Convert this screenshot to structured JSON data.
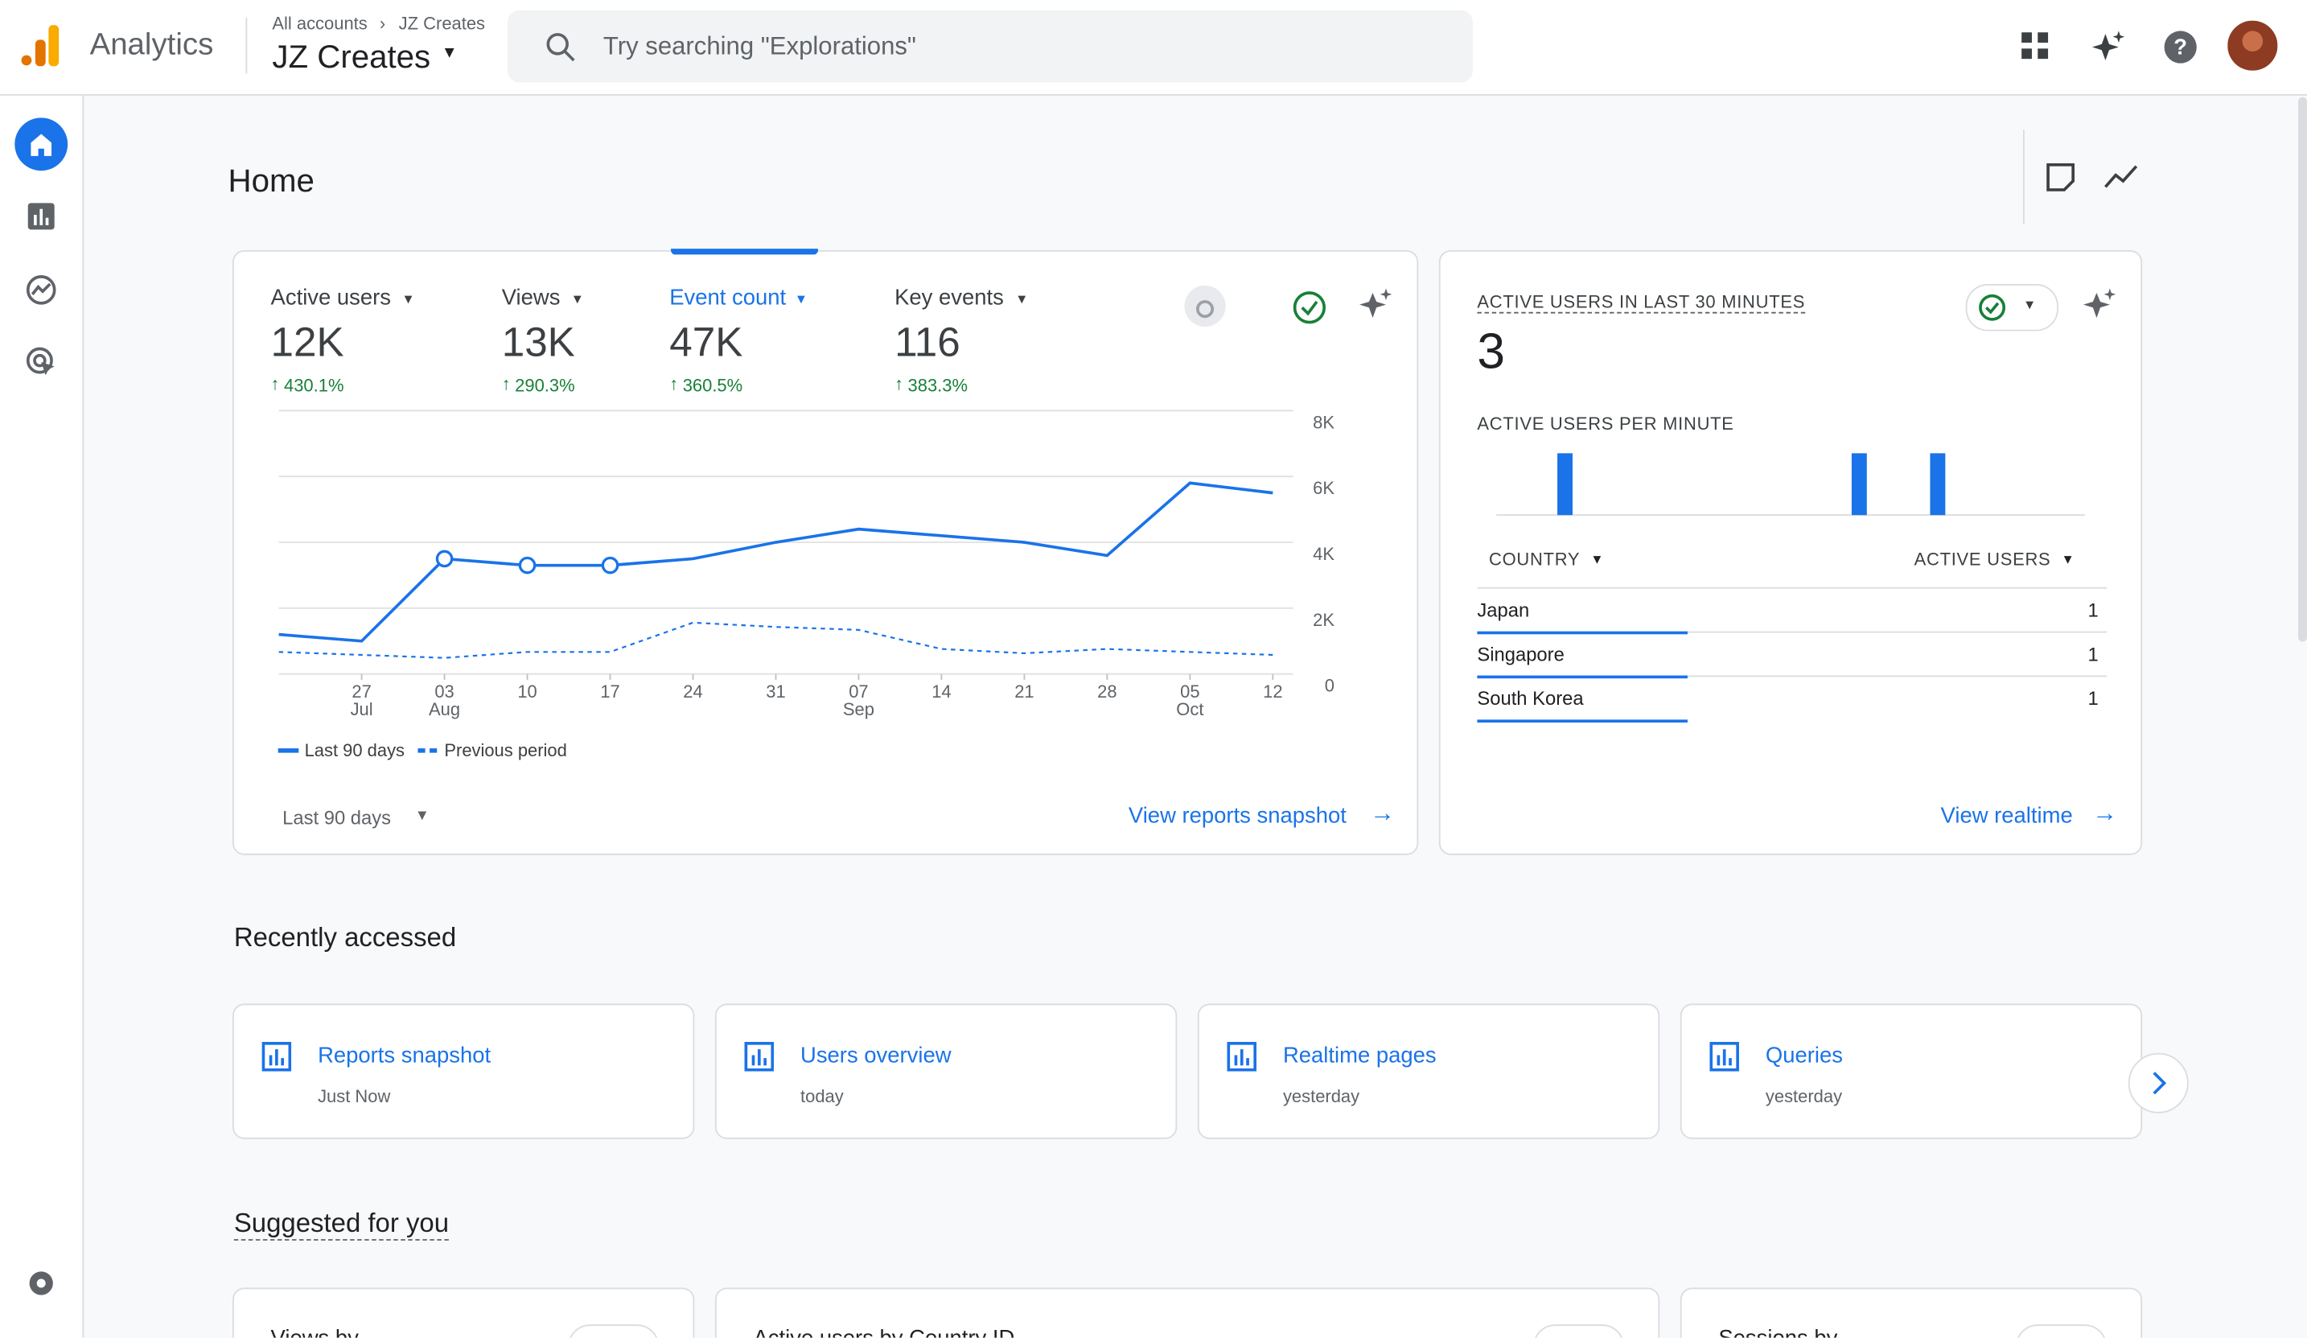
{
  "header": {
    "product": "Analytics",
    "breadcrumb": [
      "All accounts",
      "JZ Creates"
    ],
    "property": "JZ Creates",
    "search_placeholder": "Try searching \"Explorations\""
  },
  "page_title": "Home",
  "overview": {
    "metrics": [
      {
        "name": "Active users",
        "value": "12K",
        "change": "430.1%"
      },
      {
        "name": "Views",
        "value": "13K",
        "change": "290.3%"
      },
      {
        "name": "Event count",
        "value": "47K",
        "change": "360.5%"
      },
      {
        "name": "Key events",
        "value": "116",
        "change": "383.3%"
      }
    ],
    "chart": {
      "type": "line",
      "categories": [
        null,
        "27",
        "03",
        "10",
        "17",
        "24",
        "31",
        "07",
        "14",
        "21",
        "28",
        "05",
        "12"
      ],
      "months": [
        null,
        "Jul",
        "Aug",
        null,
        null,
        null,
        null,
        "Sep",
        null,
        null,
        null,
        "Oct",
        null
      ],
      "ylim": [
        0,
        8000
      ],
      "yticks": [
        0,
        {
          "value": 2000,
          "label": "2K"
        },
        {
          "value": 4000,
          "label": "4K"
        },
        {
          "value": 6000,
          "label": "6K"
        },
        {
          "value": 8000,
          "label": "8K"
        }
      ],
      "grid": true,
      "series": [
        {
          "name": "Last 90 days",
          "color": "#1a73e8",
          "values": [
            1200,
            1000,
            3500,
            3300,
            3300,
            3500,
            4000,
            4400,
            4200,
            4000,
            3600,
            5800,
            5500
          ]
        },
        {
          "name": "Previous period",
          "color": "#1a73e8",
          "dashed": true,
          "values": [
            670,
            580,
            490,
            670,
            670,
            1560,
            1430,
            1340,
            760,
            630,
            760,
            670,
            580
          ]
        }
      ]
    },
    "date_range": "Last 90 days",
    "link": "View reports snapshot"
  },
  "realtime": {
    "title": "ACTIVE USERS IN LAST 30 MINUTES",
    "value": "3",
    "subtitle": "ACTIVE USERS PER MINUTE",
    "per_minute": {
      "type": "bar",
      "color": "#1a73e8",
      "values": [
        0,
        0,
        0,
        1,
        0,
        0,
        0,
        0,
        0,
        0,
        0,
        0,
        0,
        0,
        0,
        0,
        0,
        0,
        1,
        0,
        0,
        0,
        1,
        0,
        0,
        0,
        0,
        0,
        0,
        0
      ]
    },
    "table": {
      "headers": [
        "COUNTRY",
        "ACTIVE USERS"
      ],
      "rows": [
        [
          "Japan",
          1
        ],
        [
          "Singapore",
          1
        ],
        [
          "South Korea",
          1
        ]
      ]
    },
    "link": "View realtime"
  },
  "recent": {
    "title": "Recently accessed",
    "items": [
      {
        "name": "Reports snapshot",
        "time": "Just Now"
      },
      {
        "name": "Users overview",
        "time": "today"
      },
      {
        "name": "Realtime pages",
        "time": "yesterday"
      },
      {
        "name": "Queries",
        "time": "yesterday"
      }
    ]
  },
  "suggested": {
    "title": "Suggested for you",
    "cards": [
      "Views by",
      "Active users by Country ID",
      "Sessions by"
    ]
  }
}
